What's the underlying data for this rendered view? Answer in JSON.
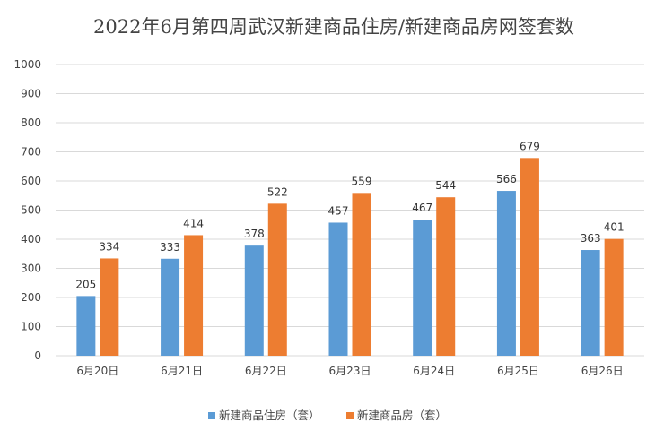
{
  "chart_data": {
    "type": "bar",
    "title": "2022年6月第四周武汉新建商品住房/新建商品房网签套数",
    "categories": [
      "6月20日",
      "6月21日",
      "6月22日",
      "6月23日",
      "6月24日",
      "6月25日",
      "6月26日"
    ],
    "series": [
      {
        "name": "新建商品住房（套）",
        "color": "#5b9bd5",
        "values": [
          205,
          333,
          378,
          457,
          467,
          566,
          363
        ]
      },
      {
        "name": "新建商品房（套）",
        "color": "#ed7d31",
        "values": [
          334,
          414,
          522,
          559,
          544,
          679,
          401
        ]
      }
    ],
    "ylim": [
      0,
      1000
    ],
    "yticks": [
      0,
      100,
      200,
      300,
      400,
      500,
      600,
      700,
      800,
      900,
      1000
    ],
    "grid": true,
    "legend": "bottom"
  }
}
